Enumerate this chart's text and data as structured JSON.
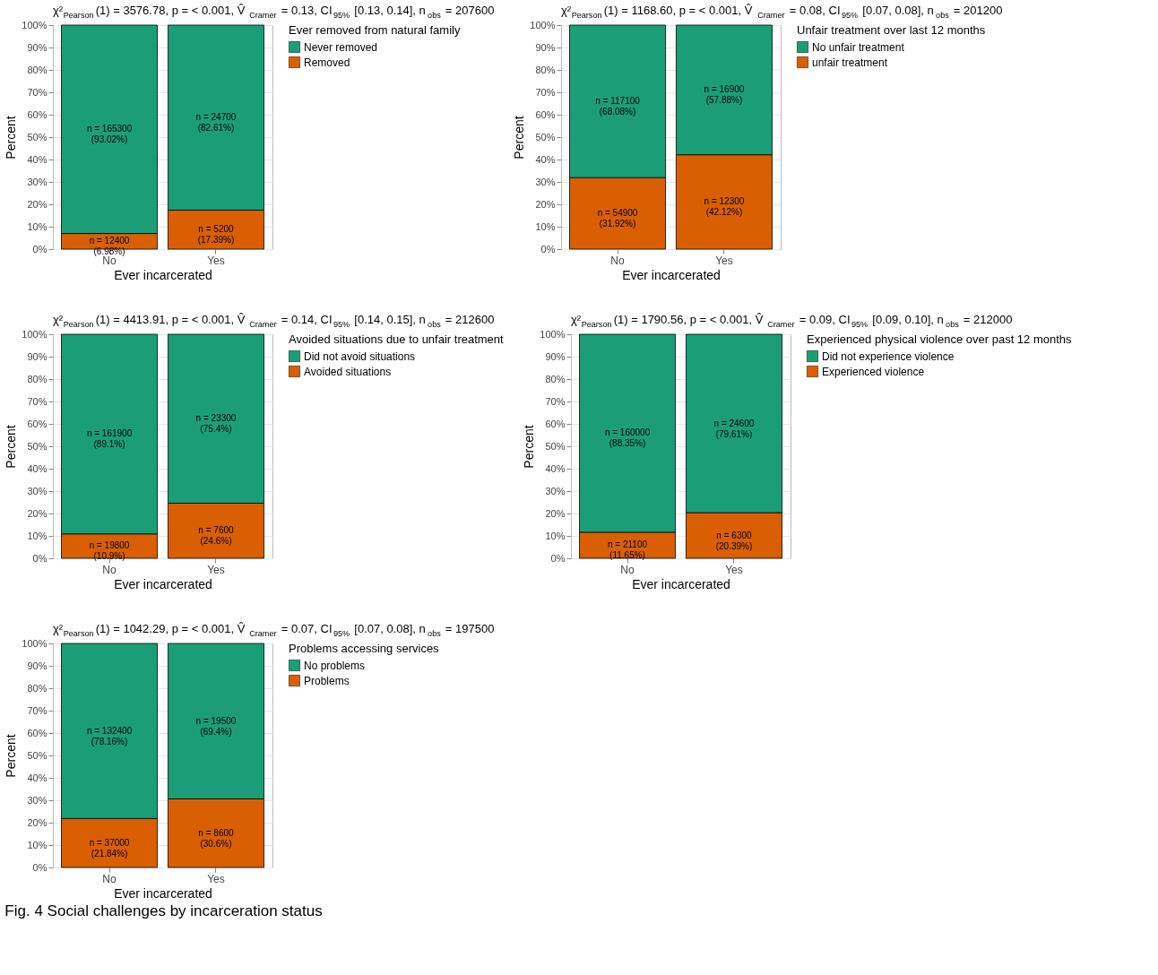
{
  "chart_data": [
    {
      "type": "bar",
      "stacked": true,
      "title": "χ²$_{Pearson}$(1) = 3576.78, p = < 0.001, V̂$_{Cramer}$ = 0.13, CI$_{95%}$ [0.13, 0.14], n$_{obs}$ = 207600",
      "xlabel": "Ever incarcerated",
      "ylabel": "Percent",
      "legend_title": "Ever removed from natural family",
      "legend": "right",
      "grid": "y",
      "categories": [
        "No",
        "Yes"
      ],
      "ylim": [
        0,
        100
      ],
      "yticks": [
        {
          "value": 0,
          "label": "0%"
        },
        {
          "value": 10,
          "label": "10%"
        },
        {
          "value": 20,
          "label": "20%"
        },
        {
          "value": 30,
          "label": "30%"
        },
        {
          "value": 40,
          "label": "40%"
        },
        {
          "value": 50,
          "label": "50%"
        },
        {
          "value": 60,
          "label": "60%"
        },
        {
          "value": 70,
          "label": "70%"
        },
        {
          "value": 80,
          "label": "80%"
        },
        {
          "value": 90,
          "label": "90%"
        },
        {
          "value": 100,
          "label": "100%"
        }
      ],
      "series": [
        {
          "name": "Removed",
          "color": "#d95f02",
          "values": [
            6.98,
            17.39
          ],
          "value_labels": [
            "n = 12400\n(6.98%)",
            "n = 5200\n(17.39%)"
          ]
        },
        {
          "name": "Never removed",
          "color": "#1b9e77",
          "values": [
            93.02,
            82.61
          ],
          "value_labels": [
            "n = 165300\n(93.02%)",
            "n = 24700\n(82.61%)"
          ]
        }
      ]
    },
    {
      "type": "bar",
      "stacked": true,
      "title": "χ²$_{Pearson}$(1) = 1168.60, p = < 0.001, V̂$_{Cramer}$ = 0.08, CI$_{95%}$ [0.07, 0.08], n$_{obs}$ = 201200",
      "xlabel": "Ever incarcerated",
      "ylabel": "Percent",
      "legend_title": "Unfair treatment over last 12 months",
      "legend": "right",
      "grid": "y",
      "categories": [
        "No",
        "Yes"
      ],
      "ylim": [
        0,
        100
      ],
      "yticks": [
        {
          "value": 0,
          "label": "0%"
        },
        {
          "value": 10,
          "label": "10%"
        },
        {
          "value": 20,
          "label": "20%"
        },
        {
          "value": 30,
          "label": "30%"
        },
        {
          "value": 40,
          "label": "40%"
        },
        {
          "value": 50,
          "label": "50%"
        },
        {
          "value": 60,
          "label": "60%"
        },
        {
          "value": 70,
          "label": "70%"
        },
        {
          "value": 80,
          "label": "80%"
        },
        {
          "value": 90,
          "label": "90%"
        },
        {
          "value": 100,
          "label": "100%"
        }
      ],
      "series": [
        {
          "name": "unfair treatment",
          "color": "#d95f02",
          "values": [
            31.92,
            42.12
          ],
          "value_labels": [
            "n = 54900\n(31.92%)",
            "n = 12300\n(42.12%)"
          ]
        },
        {
          "name": "No unfair treatment",
          "color": "#1b9e77",
          "values": [
            68.08,
            57.88
          ],
          "value_labels": [
            "n = 117100\n(68.08%)",
            "n = 16900\n(57.88%)"
          ]
        }
      ]
    },
    {
      "type": "bar",
      "stacked": true,
      "title": "χ²$_{Pearson}$(1) = 4413.91, p = < 0.001, V̂$_{Cramer}$ = 0.14, CI$_{95%}$ [0.14, 0.15], n$_{obs}$ = 212600",
      "xlabel": "Ever incarcerated",
      "ylabel": "Percent",
      "legend_title": "Avoided situations due to unfair treatment",
      "legend": "right",
      "grid": "y",
      "categories": [
        "No",
        "Yes"
      ],
      "ylim": [
        0,
        100
      ],
      "yticks": [
        {
          "value": 0,
          "label": "0%"
        },
        {
          "value": 10,
          "label": "10%"
        },
        {
          "value": 20,
          "label": "20%"
        },
        {
          "value": 30,
          "label": "30%"
        },
        {
          "value": 40,
          "label": "40%"
        },
        {
          "value": 50,
          "label": "50%"
        },
        {
          "value": 60,
          "label": "60%"
        },
        {
          "value": 70,
          "label": "70%"
        },
        {
          "value": 80,
          "label": "80%"
        },
        {
          "value": 90,
          "label": "90%"
        },
        {
          "value": 100,
          "label": "100%"
        }
      ],
      "series": [
        {
          "name": "Avoided situations",
          "color": "#d95f02",
          "values": [
            10.9,
            24.6
          ],
          "value_labels": [
            "n = 19800\n(10.9%)",
            "n = 7600\n(24.6%)"
          ]
        },
        {
          "name": "Did not avoid situations",
          "color": "#1b9e77",
          "values": [
            89.1,
            75.4
          ],
          "value_labels": [
            "n = 161900\n(89.1%)",
            "n = 23300\n(75.4%)"
          ]
        }
      ]
    },
    {
      "type": "bar",
      "stacked": true,
      "title": "χ²$_{Pearson}$(1) = 1790.56, p = < 0.001, V̂$_{Cramer}$ = 0.09, CI$_{95%}$ [0.09, 0.10], n$_{obs}$ = 212000",
      "xlabel": "Ever incarcerated",
      "ylabel": "Percent",
      "legend_title": "Experienced physical violence over past 12 months",
      "legend": "right",
      "grid": "y",
      "categories": [
        "No",
        "Yes"
      ],
      "ylim": [
        0,
        100
      ],
      "yticks": [
        {
          "value": 0,
          "label": "0%"
        },
        {
          "value": 10,
          "label": "10%"
        },
        {
          "value": 20,
          "label": "20%"
        },
        {
          "value": 30,
          "label": "30%"
        },
        {
          "value": 40,
          "label": "40%"
        },
        {
          "value": 50,
          "label": "50%"
        },
        {
          "value": 60,
          "label": "60%"
        },
        {
          "value": 70,
          "label": "70%"
        },
        {
          "value": 80,
          "label": "80%"
        },
        {
          "value": 90,
          "label": "90%"
        },
        {
          "value": 100,
          "label": "100%"
        }
      ],
      "series": [
        {
          "name": "Experienced violence",
          "color": "#d95f02",
          "values": [
            11.65,
            20.39
          ],
          "value_labels": [
            "n = 21100\n(11.65%)",
            "n = 6300\n(20.39%)"
          ]
        },
        {
          "name": "Did not experience violence",
          "color": "#1b9e77",
          "values": [
            88.35,
            79.61
          ],
          "value_labels": [
            "n = 160000\n(88.35%)",
            "n = 24600\n(79.61%)"
          ]
        }
      ]
    },
    {
      "type": "bar",
      "stacked": true,
      "title": "χ²$_{Pearson}$(1) = 1042.29, p = < 0.001, V̂$_{Cramer}$ = 0.07, CI$_{95%}$ [0.07, 0.08], n$_{obs}$ = 197500",
      "xlabel": "Ever incarcerated",
      "ylabel": "Percent",
      "legend_title": "Problems accessing services",
      "legend": "right",
      "grid": "y",
      "categories": [
        "No",
        "Yes"
      ],
      "ylim": [
        0,
        100
      ],
      "yticks": [
        {
          "value": 0,
          "label": "0%"
        },
        {
          "value": 10,
          "label": "10%"
        },
        {
          "value": 20,
          "label": "20%"
        },
        {
          "value": 30,
          "label": "30%"
        },
        {
          "value": 40,
          "label": "40%"
        },
        {
          "value": 50,
          "label": "50%"
        },
        {
          "value": 60,
          "label": "60%"
        },
        {
          "value": 70,
          "label": "70%"
        },
        {
          "value": 80,
          "label": "80%"
        },
        {
          "value": 90,
          "label": "90%"
        },
        {
          "value": 100,
          "label": "100%"
        }
      ],
      "annotations": [
        "Fig. 4 Social challenges by incarceration status"
      ],
      "series": [
        {
          "name": "Problems",
          "color": "#d95f02",
          "values": [
            21.84,
            30.6
          ],
          "value_labels": [
            "n = 37000\n(21.84%)",
            "n = 8600\n(30.6%)"
          ]
        },
        {
          "name": "No problems",
          "color": "#1b9e77",
          "values": [
            78.16,
            69.4
          ],
          "value_labels": [
            "n = 132400\n(78.16%)",
            "n = 19500\n(69.4%)"
          ]
        }
      ]
    }
  ]
}
